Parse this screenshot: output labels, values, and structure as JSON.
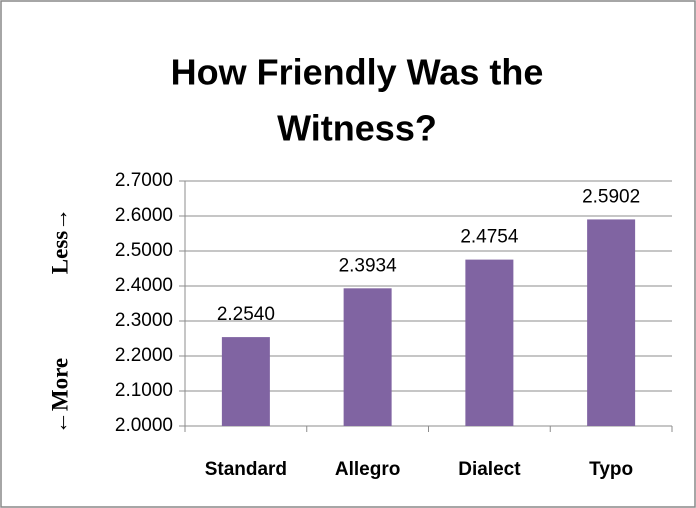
{
  "chart_data": {
    "type": "bar",
    "title": [
      "How Friendly Was the",
      "Witness?"
    ],
    "y_axis_annotations": [
      "←More",
      "Less→"
    ],
    "categories": [
      "Standard",
      "Allegro",
      "Dialect",
      "Typo"
    ],
    "values": [
      2.254,
      2.3934,
      2.4754,
      2.5902
    ],
    "value_labels": [
      "2.2540",
      "2.3934",
      "2.4754",
      "2.5902"
    ],
    "color": "#8064a2",
    "ylim": [
      2.0,
      2.7
    ],
    "yticks": [
      {
        "value": 2.0,
        "label": "2.0000"
      },
      {
        "value": 2.1,
        "label": "2.1000"
      },
      {
        "value": 2.2,
        "label": "2.2000"
      },
      {
        "value": 2.3,
        "label": "2.3000"
      },
      {
        "value": 2.4,
        "label": "2.4000"
      },
      {
        "value": 2.5,
        "label": "2.5000"
      },
      {
        "value": 2.6,
        "label": "2.6000"
      },
      {
        "value": 2.7,
        "label": "2.7000"
      }
    ],
    "grid": true
  }
}
